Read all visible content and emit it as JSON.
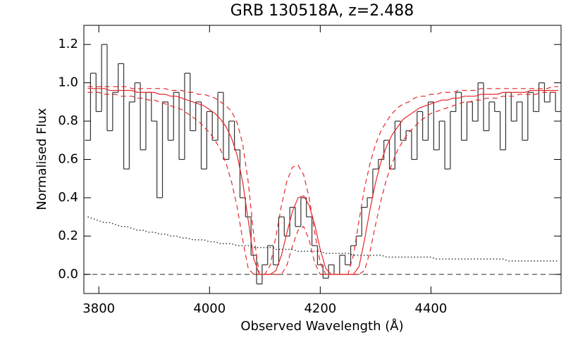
{
  "chart_data": {
    "type": "line",
    "title": "GRB 130518A, z=2.488",
    "xlabel": "Observed Wavelength (Å)",
    "ylabel": "Normalised Flux",
    "xlim": [
      3773,
      4635
    ],
    "ylim": [
      -0.1,
      1.3
    ],
    "xticks": [
      3800,
      4000,
      4200,
      4400
    ],
    "yticks": [
      {
        "value": 0,
        "label": "0.0"
      },
      0.2,
      0.4,
      0.6,
      0.8,
      {
        "value": 1,
        "label": "1.0"
      },
      1.2
    ],
    "x": [
      3780,
      3790,
      3800,
      3810,
      3820,
      3830,
      3840,
      3850,
      3860,
      3870,
      3880,
      3890,
      3900,
      3910,
      3920,
      3930,
      3940,
      3950,
      3960,
      3970,
      3980,
      3990,
      4000,
      4010,
      4020,
      4030,
      4040,
      4050,
      4060,
      4070,
      4080,
      4090,
      4100,
      4110,
      4120,
      4130,
      4140,
      4150,
      4160,
      4170,
      4180,
      4190,
      4200,
      4210,
      4220,
      4230,
      4240,
      4250,
      4260,
      4270,
      4280,
      4290,
      4300,
      4310,
      4320,
      4330,
      4340,
      4350,
      4360,
      4370,
      4380,
      4390,
      4400,
      4410,
      4420,
      4430,
      4440,
      4450,
      4460,
      4470,
      4480,
      4490,
      4500,
      4510,
      4520,
      4530,
      4540,
      4550,
      4560,
      4570,
      4580,
      4590,
      4600,
      4610,
      4620,
      4630
    ],
    "series": [
      {
        "color": "#333333",
        "linestyle": "solid",
        "drawstyle": "steps-mid",
        "values": [
          0.7,
          1.05,
          0.85,
          1.2,
          0.75,
          0.95,
          1.1,
          0.55,
          0.9,
          1.0,
          0.65,
          0.95,
          0.8,
          0.4,
          0.9,
          0.7,
          0.95,
          0.6,
          1.05,
          0.75,
          0.9,
          0.55,
          0.85,
          0.7,
          0.95,
          0.6,
          0.8,
          0.65,
          0.4,
          0.3,
          0.1,
          -0.05,
          0.05,
          0.15,
          0.05,
          0.3,
          0.2,
          0.35,
          0.25,
          0.4,
          0.3,
          0.15,
          0.05,
          -0.02,
          0.05,
          0.0,
          0.1,
          0.05,
          0.15,
          0.2,
          0.35,
          0.4,
          0.55,
          0.6,
          0.7,
          0.55,
          0.8,
          0.7,
          0.75,
          0.6,
          0.85,
          0.7,
          0.9,
          0.65,
          0.8,
          0.55,
          0.85,
          0.95,
          0.7,
          0.9,
          0.8,
          1.0,
          0.75,
          0.9,
          0.85,
          0.65,
          0.95,
          0.8,
          0.9,
          0.7,
          0.95,
          0.85,
          1.0,
          0.9,
          0.95,
          0.85
        ]
      },
      {
        "color": "#e8262a",
        "linestyle": "solid",
        "drawstyle": "default",
        "values": [
          0.97,
          0.97,
          0.97,
          0.97,
          0.96,
          0.96,
          0.96,
          0.96,
          0.96,
          0.95,
          0.95,
          0.95,
          0.95,
          0.94,
          0.94,
          0.93,
          0.93,
          0.92,
          0.91,
          0.9,
          0.89,
          0.88,
          0.86,
          0.84,
          0.81,
          0.77,
          0.71,
          0.62,
          0.48,
          0.28,
          0.08,
          0.0,
          0.0,
          0.0,
          0.02,
          0.1,
          0.22,
          0.33,
          0.4,
          0.41,
          0.36,
          0.26,
          0.13,
          0.03,
          0.0,
          0.0,
          0.0,
          0.0,
          0.0,
          0.04,
          0.18,
          0.34,
          0.48,
          0.59,
          0.67,
          0.73,
          0.77,
          0.81,
          0.83,
          0.85,
          0.87,
          0.88,
          0.89,
          0.9,
          0.91,
          0.91,
          0.92,
          0.92,
          0.93,
          0.93,
          0.93,
          0.94,
          0.94,
          0.94,
          0.94,
          0.95,
          0.95,
          0.95,
          0.95,
          0.95,
          0.96,
          0.96,
          0.96,
          0.96,
          0.96,
          0.96
        ]
      },
      {
        "color": "#e8262a",
        "linestyle": "dashed",
        "drawstyle": "default",
        "values": [
          0.98,
          0.98,
          0.98,
          0.98,
          0.98,
          0.98,
          0.98,
          0.98,
          0.97,
          0.97,
          0.97,
          0.97,
          0.97,
          0.97,
          0.97,
          0.96,
          0.96,
          0.96,
          0.95,
          0.95,
          0.94,
          0.94,
          0.93,
          0.92,
          0.9,
          0.88,
          0.85,
          0.79,
          0.68,
          0.48,
          0.2,
          0.0,
          0.0,
          0.05,
          0.2,
          0.36,
          0.49,
          0.56,
          0.57,
          0.52,
          0.4,
          0.22,
          0.06,
          0.0,
          0.0,
          0.0,
          0.0,
          0.0,
          0.1,
          0.28,
          0.45,
          0.58,
          0.68,
          0.75,
          0.8,
          0.84,
          0.87,
          0.89,
          0.9,
          0.92,
          0.93,
          0.93,
          0.94,
          0.94,
          0.95,
          0.95,
          0.95,
          0.96,
          0.96,
          0.96,
          0.96,
          0.97,
          0.97,
          0.97,
          0.97,
          0.97,
          0.97,
          0.97,
          0.97,
          0.97,
          0.97,
          0.97,
          0.97,
          0.97,
          0.98,
          0.98
        ]
      },
      {
        "color": "#e8262a",
        "linestyle": "dashed",
        "drawstyle": "default",
        "values": [
          0.95,
          0.95,
          0.95,
          0.94,
          0.94,
          0.94,
          0.93,
          0.93,
          0.93,
          0.92,
          0.92,
          0.91,
          0.91,
          0.9,
          0.89,
          0.88,
          0.87,
          0.86,
          0.84,
          0.82,
          0.8,
          0.77,
          0.74,
          0.7,
          0.65,
          0.58,
          0.48,
          0.35,
          0.18,
          0.03,
          0.0,
          0.0,
          0.0,
          0.0,
          0.0,
          0.0,
          0.05,
          0.15,
          0.23,
          0.25,
          0.18,
          0.06,
          0.0,
          0.0,
          0.0,
          0.0,
          0.0,
          0.0,
          0.0,
          0.0,
          0.02,
          0.12,
          0.26,
          0.39,
          0.5,
          0.58,
          0.65,
          0.7,
          0.74,
          0.77,
          0.8,
          0.82,
          0.84,
          0.85,
          0.86,
          0.87,
          0.88,
          0.89,
          0.9,
          0.9,
          0.91,
          0.91,
          0.92,
          0.92,
          0.92,
          0.93,
          0.93,
          0.93,
          0.94,
          0.94,
          0.94,
          0.94,
          0.95,
          0.95,
          0.95,
          0.95
        ]
      },
      {
        "color": "#333333",
        "linestyle": "dotted",
        "drawstyle": "default",
        "values": [
          0.3,
          0.29,
          0.28,
          0.27,
          0.27,
          0.26,
          0.25,
          0.25,
          0.24,
          0.23,
          0.23,
          0.22,
          0.22,
          0.21,
          0.21,
          0.2,
          0.2,
          0.19,
          0.19,
          0.18,
          0.18,
          0.18,
          0.17,
          0.17,
          0.16,
          0.16,
          0.16,
          0.15,
          0.15,
          0.15,
          0.14,
          0.14,
          0.14,
          0.14,
          0.13,
          0.13,
          0.13,
          0.13,
          0.12,
          0.12,
          0.12,
          0.12,
          0.12,
          0.11,
          0.11,
          0.11,
          0.11,
          0.11,
          0.1,
          0.1,
          0.1,
          0.1,
          0.1,
          0.1,
          0.09,
          0.09,
          0.09,
          0.09,
          0.09,
          0.09,
          0.09,
          0.09,
          0.09,
          0.08,
          0.08,
          0.08,
          0.08,
          0.08,
          0.08,
          0.08,
          0.08,
          0.08,
          0.08,
          0.08,
          0.08,
          0.08,
          0.07,
          0.07,
          0.07,
          0.07,
          0.07,
          0.07,
          0.07,
          0.07,
          0.07,
          0.07
        ]
      }
    ],
    "hlines": [
      {
        "y": 0,
        "color": "#555555",
        "linestyle": "dashed"
      }
    ]
  }
}
